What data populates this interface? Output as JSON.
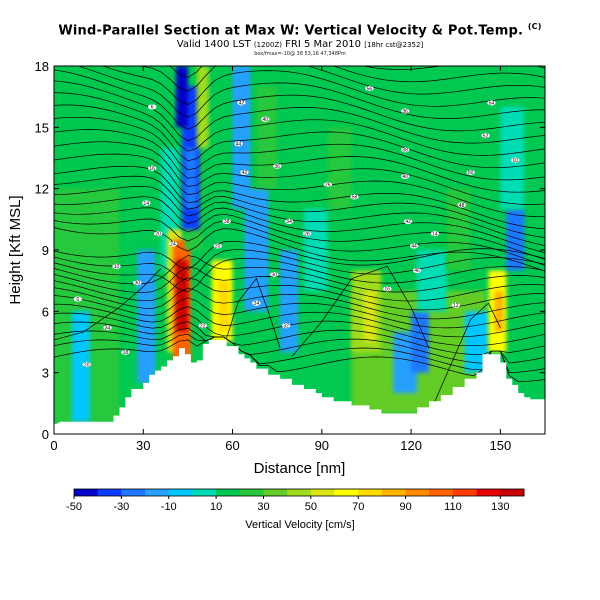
{
  "chart_data": {
    "type": "heatmap",
    "title": "Wind-Parallel Section at Max W: Vertical Velocity & Pot.Temp.",
    "title_mark": "(C)",
    "subtitle_main": "Valid 1400 LST",
    "subtitle_utc": "(1200Z)",
    "subtitle_date": "FRI 5 Mar 2010",
    "subtitle_run": "[18hr cst@2352]",
    "note": "box/fmax=-10@ 38 53,16 47,348Pm",
    "xlabel": "Distance [nm]",
    "ylabel": "Height [Kft MSL]",
    "xlim": [
      0,
      165
    ],
    "ylim": [
      0,
      18
    ],
    "x_ticks": [
      0,
      30,
      60,
      90,
      120,
      150
    ],
    "y_ticks": [
      0,
      3,
      6,
      9,
      12,
      15,
      18
    ],
    "x_tick_labels": [
      "0",
      "30",
      "60",
      "90",
      "120",
      "150"
    ],
    "y_tick_labels": [
      "0",
      "3",
      "6",
      "9",
      "12",
      "15",
      "18"
    ],
    "colorbar": {
      "title": "Vertical Velocity [cm/s]",
      "bins": [
        -50,
        -40,
        -30,
        -20,
        -10,
        0,
        10,
        20,
        30,
        40,
        50,
        60,
        70,
        80,
        90,
        100,
        110,
        120,
        130,
        140
      ],
      "colors": [
        "#0000c8",
        "#0a3cff",
        "#1e78ff",
        "#28a0ff",
        "#00c8ff",
        "#00dcb4",
        "#00c850",
        "#28c83c",
        "#64cd28",
        "#a0dc1e",
        "#dce614",
        "#ffff00",
        "#ffdc00",
        "#ffb400",
        "#ff8c00",
        "#ff6400",
        "#ff3c00",
        "#e60000",
        "#c80000"
      ],
      "tick_values": [
        -50,
        -30,
        -10,
        10,
        30,
        50,
        70,
        90,
        110,
        130
      ],
      "tick_labels": [
        "-50",
        "-30",
        "-10",
        "10",
        "30",
        "50",
        "70",
        "90",
        "110",
        "130"
      ]
    },
    "terrain": {
      "x": [
        0,
        1,
        2,
        20,
        20,
        22,
        22,
        24,
        24,
        26,
        26,
        30,
        30,
        32,
        32,
        34,
        34,
        36,
        36,
        38,
        38,
        40,
        40,
        42,
        42,
        44,
        44,
        46,
        46,
        48,
        48,
        50,
        50,
        52,
        52,
        58,
        58,
        62,
        62,
        64,
        64,
        66,
        66,
        68,
        68,
        72,
        72,
        76,
        76,
        80,
        80,
        84,
        84,
        88,
        88,
        90,
        90,
        94,
        94,
        100,
        100,
        106,
        106,
        110,
        110,
        114,
        114,
        118,
        118,
        122,
        122,
        126,
        126,
        130,
        130,
        134,
        134,
        138,
        138,
        142,
        142,
        144,
        144,
        150,
        150,
        152,
        152,
        154,
        154,
        156,
        156,
        158,
        158,
        160,
        160,
        165
      ],
      "y": [
        0.5,
        0.5,
        0.6,
        0.6,
        0.9,
        0.9,
        1.3,
        1.3,
        1.8,
        1.8,
        2.2,
        2.2,
        2.5,
        2.5,
        2.9,
        2.9,
        3.1,
        3.1,
        3.3,
        3.3,
        3.6,
        3.6,
        3.8,
        3.8,
        4.2,
        4.2,
        3.9,
        3.9,
        3.5,
        3.5,
        3.6,
        3.6,
        4.4,
        4.4,
        4.6,
        4.6,
        4.3,
        4.3,
        3.9,
        3.9,
        3.7,
        3.7,
        3.5,
        3.5,
        3.2,
        3.2,
        2.9,
        2.9,
        2.7,
        2.7,
        2.4,
        2.4,
        2.2,
        2.2,
        2.0,
        2.0,
        1.8,
        1.8,
        1.6,
        1.6,
        1.4,
        1.4,
        1.2,
        1.2,
        1.0,
        1.0,
        1.0,
        1.0,
        1.0,
        1.0,
        1.3,
        1.3,
        1.6,
        1.6,
        1.9,
        1.9,
        2.3,
        2.3,
        2.7,
        2.7,
        3.0,
        3.0,
        3.9,
        3.9,
        3.5,
        3.5,
        2.7,
        2.7,
        2.4,
        2.4,
        2.0,
        2.0,
        1.8,
        1.8,
        1.7,
        1.7
      ]
    },
    "cells": [
      {
        "x": [
          0,
          165
        ],
        "y": [
          0,
          18
        ],
        "v": 10
      },
      {
        "x": [
          0,
          22
        ],
        "y": [
          0.5,
          18
        ],
        "v": 25
      },
      {
        "x": [
          100,
          145
        ],
        "y": [
          1,
          7
        ],
        "v": 35
      },
      {
        "x": [
          6,
          12
        ],
        "y": [
          0.6,
          6
        ],
        "v": -5
      },
      {
        "x": [
          28,
          34
        ],
        "y": [
          2.5,
          9
        ],
        "v": -15
      },
      {
        "x": [
          36,
          42
        ],
        "y": [
          8,
          14
        ],
        "v": 0
      },
      {
        "x": [
          38,
          43
        ],
        "y": [
          4,
          10
        ],
        "v": 55
      },
      {
        "x": [
          40,
          46
        ],
        "y": [
          3.5,
          9.5
        ],
        "v": 105
      },
      {
        "x": [
          41,
          45
        ],
        "y": [
          5,
          8.5
        ],
        "v": 135
      },
      {
        "x": [
          44,
          50
        ],
        "y": [
          9,
          14
        ],
        "v": 20
      },
      {
        "x": [
          43,
          49
        ],
        "y": [
          10,
          17
        ],
        "v": -35
      },
      {
        "x": [
          41,
          45
        ],
        "y": [
          15,
          18
        ],
        "v": -45
      },
      {
        "x": [
          44,
          48
        ],
        "y": [
          11,
          14
        ],
        "v": -25
      },
      {
        "x": [
          53,
          60
        ],
        "y": [
          4.5,
          8.5
        ],
        "v": 60
      },
      {
        "x": [
          55,
          59
        ],
        "y": [
          5,
          7.5
        ],
        "v": 75
      },
      {
        "x": [
          48,
          52
        ],
        "y": [
          14,
          18
        ],
        "v": 45
      },
      {
        "x": [
          60,
          66
        ],
        "y": [
          11,
          18
        ],
        "v": -20
      },
      {
        "x": [
          64,
          72
        ],
        "y": [
          6,
          12
        ],
        "v": -15
      },
      {
        "x": [
          68,
          75
        ],
        "y": [
          12,
          17
        ],
        "v": 20
      },
      {
        "x": [
          76,
          82
        ],
        "y": [
          4,
          9
        ],
        "v": -15
      },
      {
        "x": [
          84,
          92
        ],
        "y": [
          7,
          11
        ],
        "v": 5
      },
      {
        "x": [
          92,
          100
        ],
        "y": [
          11,
          15
        ],
        "v": 25
      },
      {
        "x": [
          100,
          110
        ],
        "y": [
          4,
          8
        ],
        "v": 40
      },
      {
        "x": [
          104,
          108
        ],
        "y": [
          4.5,
          7
        ],
        "v": 55
      },
      {
        "x": [
          114,
          122
        ],
        "y": [
          2,
          5
        ],
        "v": -20
      },
      {
        "x": [
          120,
          126
        ],
        "y": [
          3,
          6
        ],
        "v": -30
      },
      {
        "x": [
          122,
          132
        ],
        "y": [
          6,
          9
        ],
        "v": 0
      },
      {
        "x": [
          132,
          140
        ],
        "y": [
          8,
          12
        ],
        "v": 20
      },
      {
        "x": [
          138,
          146
        ],
        "y": [
          3,
          6
        ],
        "v": -10
      },
      {
        "x": [
          146,
          152
        ],
        "y": [
          4,
          8
        ],
        "v": 60
      },
      {
        "x": [
          148,
          151
        ],
        "y": [
          5,
          7
        ],
        "v": 80
      },
      {
        "x": [
          152,
          158
        ],
        "y": [
          8,
          11
        ],
        "v": -30
      },
      {
        "x": [
          150,
          158
        ],
        "y": [
          11,
          16
        ],
        "v": 5
      },
      {
        "x": [
          158,
          165
        ],
        "y": [
          2,
          7
        ],
        "v": 15
      },
      {
        "x": [
          0,
          30
        ],
        "y": [
          12,
          18
        ],
        "v": 15
      }
    ],
    "contour_labels": [
      "6",
      "10",
      "14",
      "16",
      "6",
      "20",
      "24",
      "30",
      "34",
      "20",
      "38",
      "42",
      "44",
      "42",
      "40",
      "36",
      "34",
      "30",
      "28",
      "26",
      "36",
      "38",
      "40",
      "42",
      "44",
      "46",
      "48",
      "50",
      "52",
      "54",
      "56",
      "58",
      "32",
      "24",
      "22",
      "20",
      "18",
      "16",
      "14",
      "12",
      "10"
    ]
  }
}
